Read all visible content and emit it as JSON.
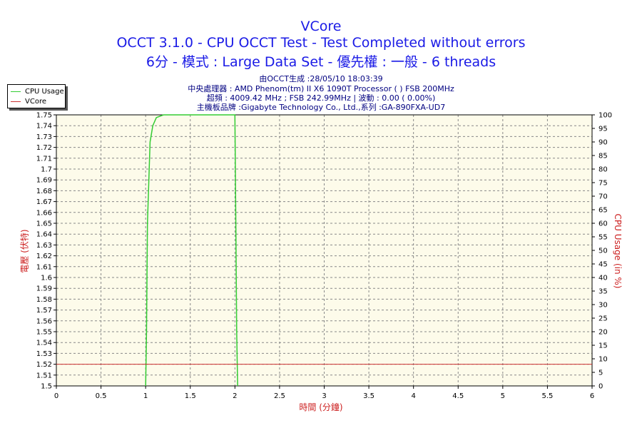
{
  "header": {
    "title": "VCore",
    "subtitle1": "OCCT 3.1.0 - CPU OCCT Test - Test Completed without errors",
    "subtitle2": "6分 - 模式 : Large Data Set - 優先權 : 一般 - 6 threads",
    "info1": "由OCCT生成 :28/05/10 18:03:39",
    "info2": "中央處理器 : AMD Phenom(tm) II X6 1090T Processor (    ) FSB 200MHz",
    "info3": "超頻 : 4009.42 MHz ; FSB 242.99MHz | 波動 : 0.00 ( 0.00%)",
    "info4": "主機板品牌 :Gigabyte Technology Co., Ltd.,系列 :GA-890FXA-UD7"
  },
  "colors": {
    "cpu_usage": "#33cc33",
    "vcore": "#cc3333",
    "plot_bg": "#fdfbea",
    "grid": "#888888",
    "title": "#1a1ae6",
    "axis_title": "#cc1f1f"
  },
  "chart_data": {
    "type": "line",
    "xlabel": "時間 (分鐘)",
    "ylabel": "電壓 (伏特)",
    "y2label": "CPU Usage (in %)",
    "xlim": [
      0,
      6
    ],
    "ylim": [
      1.5,
      1.75
    ],
    "y2lim": [
      0,
      100
    ],
    "grid": true,
    "legend_position": "top-left",
    "x_ticks": [
      "0",
      "0.5",
      "1",
      "1.5",
      "2",
      "2.5",
      "3",
      "3.5",
      "4",
      "4.5",
      "5",
      "5.5",
      "6"
    ],
    "y_ticks": [
      "1.5",
      "1.51",
      "1.52",
      "1.53",
      "1.54",
      "1.55",
      "1.56",
      "1.57",
      "1.58",
      "1.59",
      "1.6",
      "1.61",
      "1.62",
      "1.63",
      "1.64",
      "1.65",
      "1.66",
      "1.67",
      "1.68",
      "1.69",
      "1.7",
      "1.71",
      "1.72",
      "1.73",
      "1.74",
      "1.75"
    ],
    "y2_ticks": [
      "0",
      "5",
      "10",
      "15",
      "20",
      "25",
      "30",
      "35",
      "40",
      "45",
      "50",
      "55",
      "60",
      "65",
      "70",
      "75",
      "80",
      "85",
      "90",
      "95",
      "100"
    ],
    "series": [
      {
        "name": "CPU Usage",
        "axis": "right",
        "x": [
          1.0,
          1.01,
          1.02,
          1.05,
          1.08,
          1.12,
          1.2,
          1.5,
          1.8,
          1.98,
          2.0,
          2.01,
          2.02,
          2.03
        ],
        "y": [
          0,
          20,
          60,
          90,
          96,
          99,
          100,
          100,
          100,
          100,
          100,
          60,
          20,
          0
        ]
      },
      {
        "name": "VCore",
        "axis": "left",
        "x": [
          0,
          6
        ],
        "y": [
          1.52,
          1.52
        ]
      }
    ]
  }
}
